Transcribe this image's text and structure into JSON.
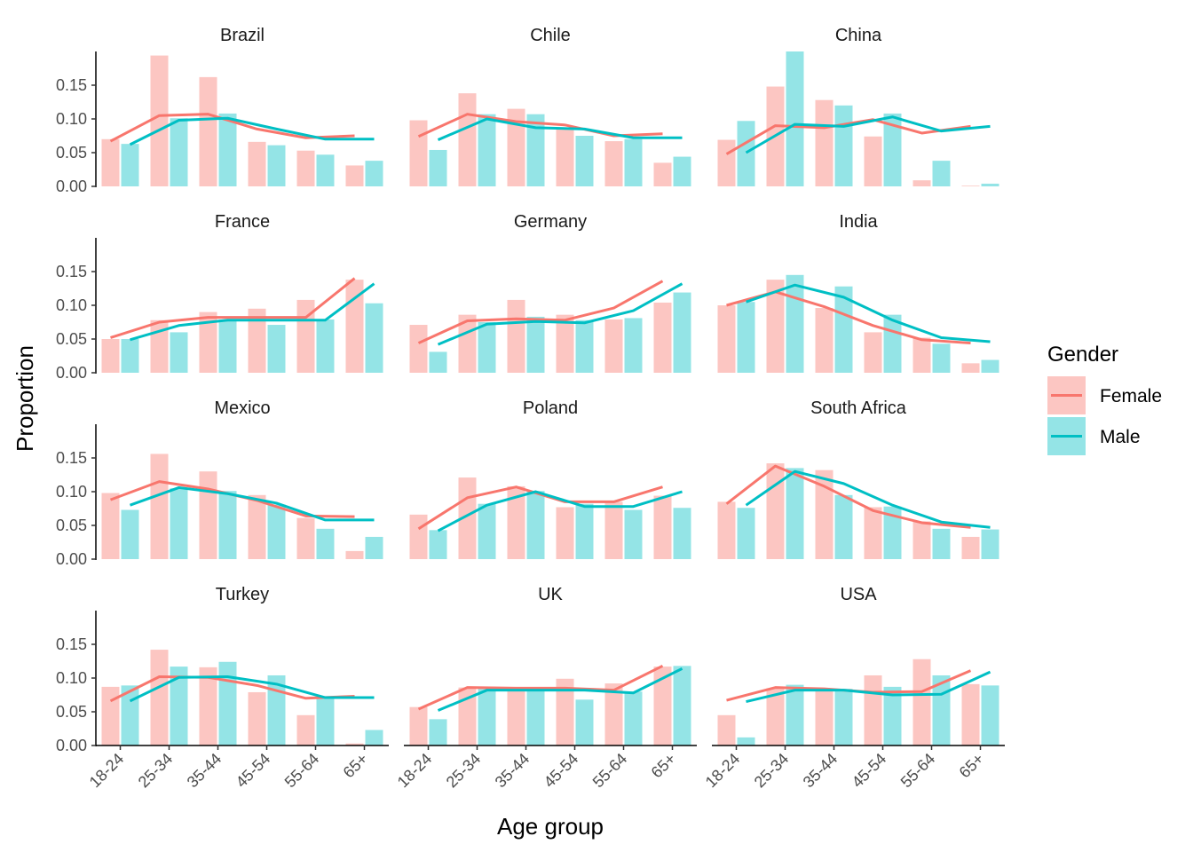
{
  "chart_data": {
    "type": "bar",
    "facet_by": "country",
    "overlay": "line",
    "xlabel": "Age group",
    "ylabel": "Proportion",
    "ylim": [
      0,
      0.2
    ],
    "yticks": [
      "0.00",
      "0.05",
      "0.10",
      "0.15"
    ],
    "categories": [
      "18-24",
      "25-34",
      "35-44",
      "45-54",
      "55-64",
      "65+"
    ],
    "legend": {
      "title": "Gender",
      "position": "right",
      "entries": [
        {
          "label": "Female",
          "bar_color": "#f8766d",
          "line_color": "#f8766d"
        },
        {
          "label": "Male",
          "bar_color": "#00bfc4",
          "line_color": "#00bfc4"
        }
      ]
    },
    "grid": false,
    "facets": [
      {
        "country": "Brazil",
        "bars": {
          "Female": [
            0.07,
            0.194,
            0.162,
            0.066,
            0.053,
            0.031
          ],
          "Male": [
            0.063,
            0.101,
            0.108,
            0.061,
            0.047,
            0.038
          ]
        },
        "lines": {
          "Female": [
            0.067,
            0.105,
            0.107,
            0.085,
            0.072,
            0.075
          ],
          "Male": [
            0.062,
            0.098,
            0.101,
            0.085,
            0.07,
            0.07
          ]
        }
      },
      {
        "country": "Chile",
        "bars": {
          "Female": [
            0.098,
            0.138,
            0.115,
            0.085,
            0.067,
            0.035
          ],
          "Male": [
            0.054,
            0.107,
            0.107,
            0.075,
            0.07,
            0.044
          ]
        },
        "lines": {
          "Female": [
            0.074,
            0.107,
            0.096,
            0.091,
            0.075,
            0.078
          ],
          "Male": [
            0.069,
            0.1,
            0.087,
            0.085,
            0.072,
            0.072
          ]
        }
      },
      {
        "country": "China",
        "bars": {
          "Female": [
            0.069,
            0.148,
            0.128,
            0.074,
            0.009,
            0.001
          ],
          "Male": [
            0.097,
            0.2,
            0.12,
            0.108,
            0.038,
            0.004
          ]
        },
        "lines": {
          "Female": [
            0.048,
            0.09,
            0.087,
            0.099,
            0.079,
            0.089
          ],
          "Male": [
            0.05,
            0.092,
            0.089,
            0.103,
            0.082,
            0.089
          ]
        }
      },
      {
        "country": "France",
        "bars": {
          "Female": [
            0.05,
            0.078,
            0.09,
            0.095,
            0.108,
            0.138
          ],
          "Male": [
            0.05,
            0.06,
            0.079,
            0.071,
            0.079,
            0.103
          ]
        },
        "lines": {
          "Female": [
            0.052,
            0.075,
            0.082,
            0.082,
            0.082,
            0.14
          ],
          "Male": [
            0.049,
            0.07,
            0.078,
            0.078,
            0.078,
            0.132
          ]
        }
      },
      {
        "country": "Germany",
        "bars": {
          "Female": [
            0.071,
            0.086,
            0.108,
            0.086,
            0.079,
            0.104
          ],
          "Male": [
            0.031,
            0.075,
            0.083,
            0.078,
            0.081,
            0.119
          ]
        },
        "lines": {
          "Female": [
            0.044,
            0.077,
            0.08,
            0.078,
            0.096,
            0.136
          ],
          "Male": [
            0.042,
            0.072,
            0.076,
            0.074,
            0.092,
            0.132
          ]
        }
      },
      {
        "country": "India",
        "bars": {
          "Female": [
            0.1,
            0.138,
            0.096,
            0.06,
            0.052,
            0.014
          ],
          "Male": [
            0.105,
            0.145,
            0.128,
            0.086,
            0.043,
            0.019
          ]
        },
        "lines": {
          "Female": [
            0.1,
            0.12,
            0.098,
            0.07,
            0.049,
            0.044
          ],
          "Male": [
            0.105,
            0.13,
            0.112,
            0.078,
            0.052,
            0.046
          ]
        }
      },
      {
        "country": "Mexico",
        "bars": {
          "Female": [
            0.098,
            0.156,
            0.13,
            0.095,
            0.061,
            0.012
          ],
          "Male": [
            0.073,
            0.105,
            0.101,
            0.081,
            0.045,
            0.033
          ]
        },
        "lines": {
          "Female": [
            0.088,
            0.115,
            0.104,
            0.087,
            0.064,
            0.063
          ],
          "Male": [
            0.08,
            0.106,
            0.097,
            0.083,
            0.058,
            0.058
          ]
        }
      },
      {
        "country": "Poland",
        "bars": {
          "Female": [
            0.066,
            0.121,
            0.108,
            0.077,
            0.085,
            0.094
          ],
          "Male": [
            0.043,
            0.082,
            0.101,
            0.082,
            0.073,
            0.076
          ]
        },
        "lines": {
          "Female": [
            0.045,
            0.091,
            0.107,
            0.085,
            0.085,
            0.107
          ],
          "Male": [
            0.042,
            0.08,
            0.1,
            0.078,
            0.078,
            0.1
          ]
        }
      },
      {
        "country": "South Africa",
        "bars": {
          "Female": [
            0.085,
            0.142,
            0.132,
            0.077,
            0.056,
            0.033
          ],
          "Male": [
            0.076,
            0.135,
            0.095,
            0.078,
            0.045,
            0.044
          ]
        },
        "lines": {
          "Female": [
            0.082,
            0.138,
            0.108,
            0.072,
            0.054,
            0.047
          ],
          "Male": [
            0.08,
            0.13,
            0.112,
            0.08,
            0.055,
            0.047
          ]
        }
      },
      {
        "country": "Turkey",
        "bars": {
          "Female": [
            0.087,
            0.142,
            0.116,
            0.079,
            0.045,
            0.003
          ],
          "Male": [
            0.089,
            0.117,
            0.124,
            0.104,
            0.069,
            0.023
          ]
        },
        "lines": {
          "Female": [
            0.066,
            0.102,
            0.101,
            0.089,
            0.07,
            0.073
          ],
          "Male": [
            0.066,
            0.101,
            0.102,
            0.091,
            0.071,
            0.071
          ]
        }
      },
      {
        "country": "UK",
        "bars": {
          "Female": [
            0.057,
            0.086,
            0.081,
            0.099,
            0.092,
            0.117
          ],
          "Male": [
            0.039,
            0.086,
            0.082,
            0.068,
            0.08,
            0.118
          ]
        },
        "lines": {
          "Female": [
            0.054,
            0.086,
            0.085,
            0.085,
            0.082,
            0.118
          ],
          "Male": [
            0.052,
            0.082,
            0.082,
            0.082,
            0.078,
            0.114
          ]
        }
      },
      {
        "country": "USA",
        "bars": {
          "Female": [
            0.045,
            0.085,
            0.082,
            0.104,
            0.128,
            0.091
          ],
          "Male": [
            0.012,
            0.09,
            0.084,
            0.087,
            0.104,
            0.089
          ]
        },
        "lines": {
          "Female": [
            0.067,
            0.086,
            0.084,
            0.079,
            0.08,
            0.111
          ],
          "Male": [
            0.065,
            0.082,
            0.082,
            0.075,
            0.076,
            0.109
          ]
        }
      }
    ]
  }
}
